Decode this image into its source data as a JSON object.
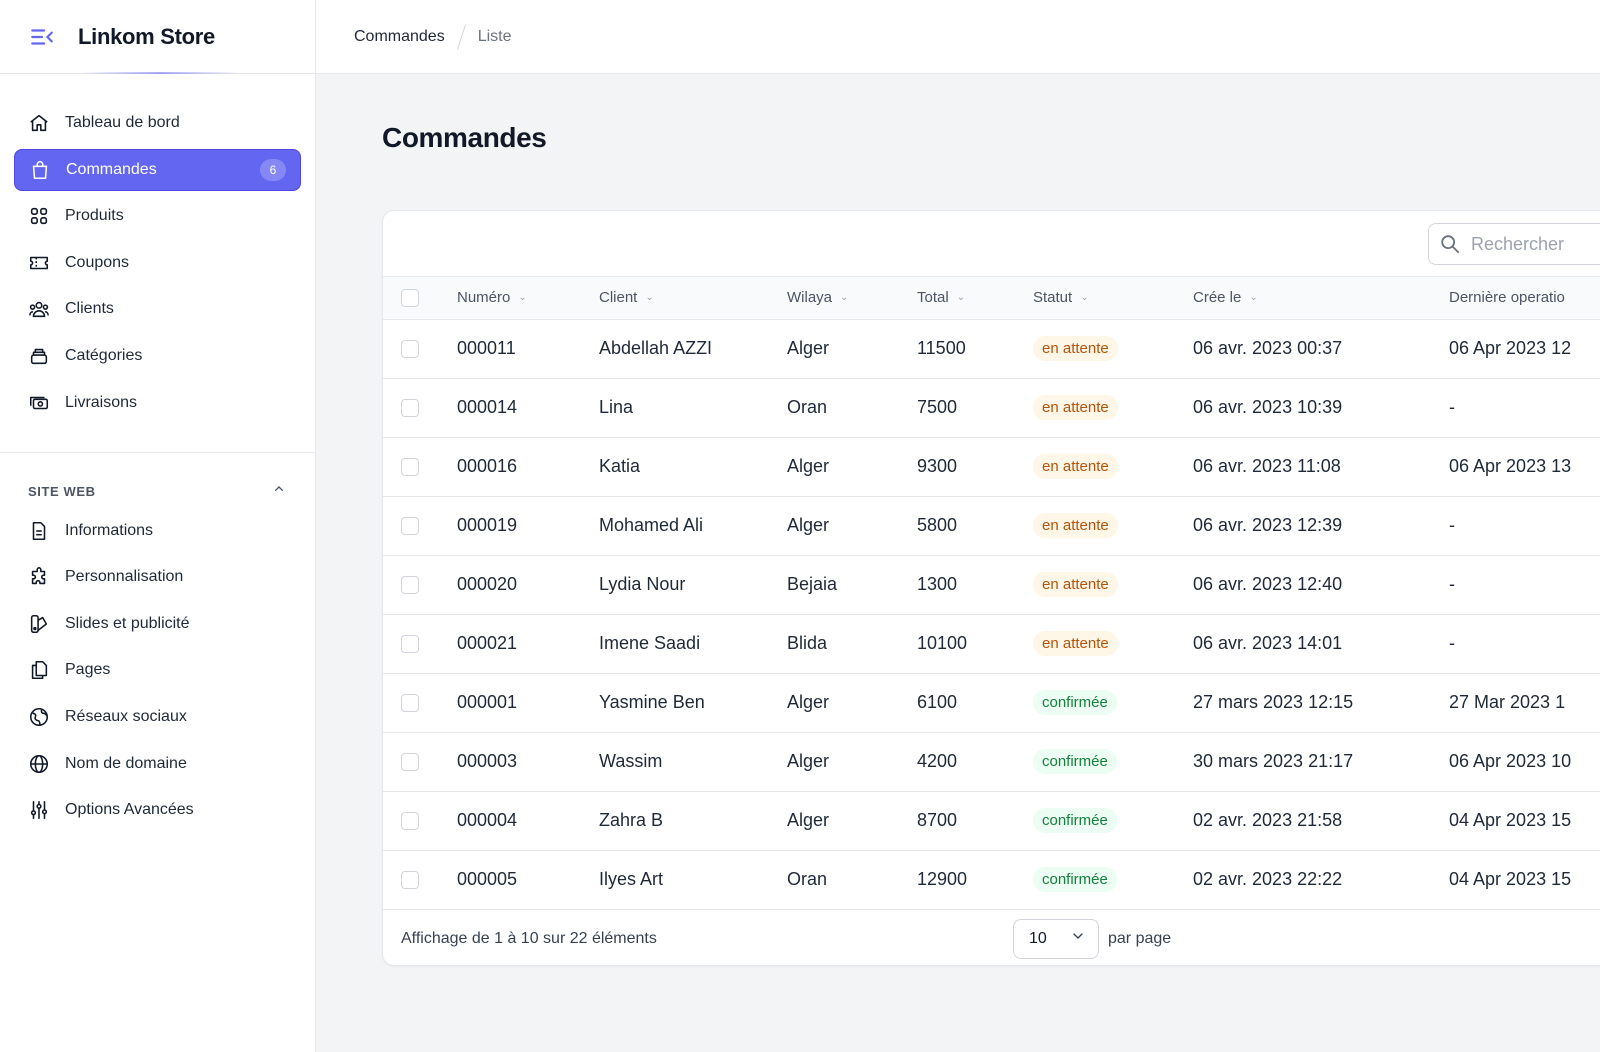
{
  "brand": {
    "title": "Linkom Store"
  },
  "breadcrumb": {
    "first": "Commandes",
    "second": "Liste"
  },
  "sidebar": {
    "items": [
      {
        "label": "Tableau de bord",
        "icon": "home-icon"
      },
      {
        "label": "Commandes",
        "icon": "shopping-bag-icon",
        "badge": "6",
        "active": true
      },
      {
        "label": "Produits",
        "icon": "grid-icon"
      },
      {
        "label": "Coupons",
        "icon": "ticket-icon"
      },
      {
        "label": "Clients",
        "icon": "users-icon"
      },
      {
        "label": "Catégories",
        "icon": "stack-icon"
      },
      {
        "label": "Livraisons",
        "icon": "cash-icon"
      }
    ],
    "section_label": "SITE WEB",
    "site_items": [
      {
        "label": "Informations",
        "icon": "document-icon"
      },
      {
        "label": "Personnalisation",
        "icon": "puzzle-icon"
      },
      {
        "label": "Slides et publicité",
        "icon": "swatch-icon"
      },
      {
        "label": "Pages",
        "icon": "pages-icon"
      },
      {
        "label": "Réseaux sociaux",
        "icon": "globe-network-icon"
      },
      {
        "label": "Nom de domaine",
        "icon": "globe-icon"
      },
      {
        "label": "Options Avancées",
        "icon": "sliders-icon"
      }
    ]
  },
  "main": {
    "title": "Commandes"
  },
  "search": {
    "placeholder": "Rechercher"
  },
  "table": {
    "columns": [
      "Numéro",
      "Client",
      "Wilaya",
      "Total",
      "Statut",
      "Crée le",
      "Dernière operatio"
    ],
    "rows": [
      {
        "numero": "000011",
        "client": "Abdellah AZZI",
        "wilaya": "Alger",
        "total": "11500",
        "statut": "en attente",
        "status_kind": "pending",
        "cree": "06 avr. 2023 00:37",
        "last": "06 Apr 2023 12"
      },
      {
        "numero": "000014",
        "client": "Lina",
        "wilaya": "Oran",
        "total": "7500",
        "statut": "en attente",
        "status_kind": "pending",
        "cree": "06 avr. 2023 10:39",
        "last": "-"
      },
      {
        "numero": "000016",
        "client": "Katia",
        "wilaya": "Alger",
        "total": "9300",
        "statut": "en attente",
        "status_kind": "pending",
        "cree": "06 avr. 2023 11:08",
        "last": "06 Apr 2023 13"
      },
      {
        "numero": "000019",
        "client": "Mohamed Ali",
        "wilaya": "Alger",
        "total": "5800",
        "statut": "en attente",
        "status_kind": "pending",
        "cree": "06 avr. 2023 12:39",
        "last": "-"
      },
      {
        "numero": "000020",
        "client": "Lydia Nour",
        "wilaya": "Bejaia",
        "total": "1300",
        "statut": "en attente",
        "status_kind": "pending",
        "cree": "06 avr. 2023 12:40",
        "last": "-"
      },
      {
        "numero": "000021",
        "client": "Imene Saadi",
        "wilaya": "Blida",
        "total": "10100",
        "statut": "en attente",
        "status_kind": "pending",
        "cree": "06 avr. 2023 14:01",
        "last": "-"
      },
      {
        "numero": "000001",
        "client": "Yasmine Ben",
        "wilaya": "Alger",
        "total": "6100",
        "statut": "confirmée",
        "status_kind": "confirmed",
        "cree": "27 mars 2023 12:15",
        "last": "27 Mar 2023 1"
      },
      {
        "numero": "000003",
        "client": "Wassim",
        "wilaya": "Alger",
        "total": "4200",
        "statut": "confirmée",
        "status_kind": "confirmed",
        "cree": "30 mars 2023 21:17",
        "last": "06 Apr 2023 10"
      },
      {
        "numero": "000004",
        "client": "Zahra B",
        "wilaya": "Alger",
        "total": "8700",
        "statut": "confirmée",
        "status_kind": "confirmed",
        "cree": "02 avr. 2023 21:58",
        "last": "04 Apr 2023 15"
      },
      {
        "numero": "000005",
        "client": "Ilyes Art",
        "wilaya": "Oran",
        "total": "12900",
        "statut": "confirmée",
        "status_kind": "confirmed",
        "cree": "02 avr. 2023 22:22",
        "last": "04 Apr 2023 15"
      }
    ]
  },
  "footer": {
    "summary": "Affichage de 1 à 10 sur 22 éléments",
    "per_page_value": "10",
    "per_page_label": "par page"
  },
  "colors": {
    "accent": "#6366f1",
    "pending_bg": "#fef6e7",
    "pending_text": "#b45309",
    "confirmed_bg": "#ecfdf3",
    "confirmed_text": "#15803d"
  }
}
